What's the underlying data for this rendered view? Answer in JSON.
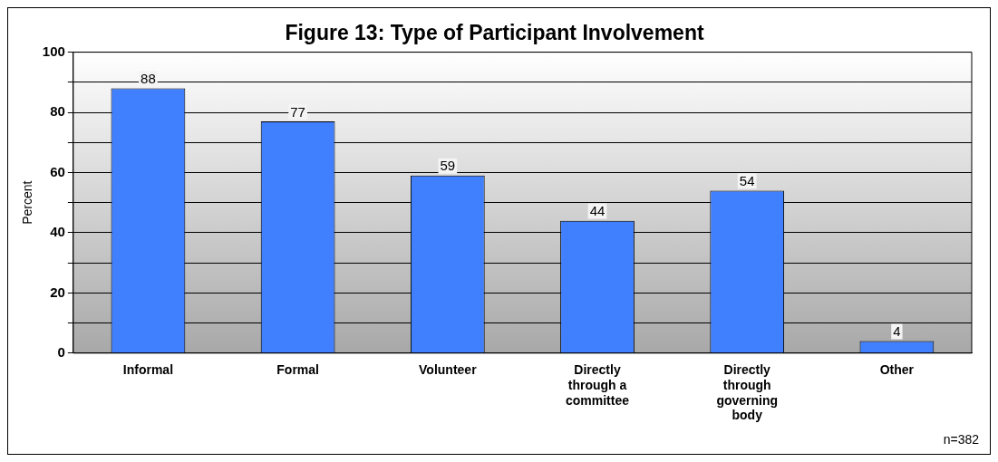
{
  "chart_data": {
    "type": "bar",
    "title": "Figure 13: Type of Participant Involvement",
    "ylabel": "Percent",
    "categories": [
      "Informal",
      "Formal",
      "Volunteer",
      "Directly through a committee",
      "Directly through governing body",
      "Other"
    ],
    "values": [
      88,
      77,
      59,
      44,
      54,
      4
    ],
    "color": "#4080ff",
    "data_labels": true,
    "grid": "y",
    "ylim": [
      0,
      100
    ],
    "yticks": [
      0,
      {
        "value": 10,
        "label": null
      },
      20,
      {
        "value": 30,
        "label": null
      },
      40,
      {
        "value": 50,
        "label": null
      },
      60,
      {
        "value": 70,
        "label": null
      },
      80,
      {
        "value": 90,
        "label": null
      },
      100
    ],
    "annotations": [
      "n=382"
    ]
  }
}
